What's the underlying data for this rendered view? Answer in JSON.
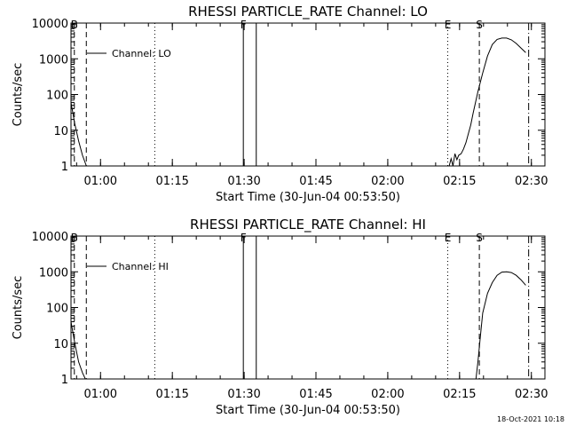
{
  "chart_data": [
    {
      "type": "line",
      "title": "RHESSI PARTICLE_RATE Channel: LO",
      "ylabel": "Counts/sec",
      "xlabel": "Start Time (30-Jun-04 00:53:50)",
      "x_units": "minutes after 00:53:50",
      "xlim": [
        0,
        99
      ],
      "yscale": "log",
      "ylim": [
        1,
        10000
      ],
      "ytick_labels": [
        "1",
        "10",
        "100",
        "1000",
        "10000"
      ],
      "ytick_values": [
        1,
        10,
        100,
        1000,
        10000
      ],
      "xtick_labels": [
        "01:00",
        "01:15",
        "01:30",
        "01:45",
        "02:00",
        "02:15",
        "02:30"
      ],
      "xtick_values": [
        6.17,
        21.17,
        36.17,
        51.17,
        66.17,
        81.17,
        96.17
      ],
      "legend": {
        "label": "Channel: LO",
        "position": "top-left"
      },
      "markers": [
        {
          "label": "B",
          "x": 0.7,
          "style": "dashed"
        },
        {
          "label": "",
          "x": 3.2,
          "style": "dashed"
        },
        {
          "label": "",
          "x": 17.5,
          "style": "dotted"
        },
        {
          "label": "F",
          "x": 36.0,
          "style": "solid"
        },
        {
          "label": "",
          "x": 38.7,
          "style": "solid"
        },
        {
          "label": "E",
          "x": 78.7,
          "style": "dotted"
        },
        {
          "label": "S",
          "x": 85.3,
          "style": "dashed"
        },
        {
          "label": "",
          "x": 95.6,
          "style": "dashdot"
        }
      ],
      "series": [
        {
          "name": "LO",
          "x": [
            0,
            0.8,
            1.6,
            2.4,
            3.2,
            79.0,
            79.4,
            79.8,
            80.2,
            80.6,
            81.0,
            81.5,
            82.0,
            82.5,
            83.0,
            83.5,
            84.0,
            84.5,
            85.0,
            86.0,
            87.0,
            88.0,
            89.0,
            90.0,
            91.0,
            92.0,
            93.0,
            94.0,
            95.0
          ],
          "y": [
            60,
            15,
            5,
            2,
            1,
            1,
            1.6,
            1,
            2.2,
            1.5,
            2.0,
            2.2,
            3.0,
            4.5,
            8,
            14,
            30,
            60,
            120,
            400,
            1200,
            2500,
            3500,
            3800,
            3800,
            3400,
            2700,
            2000,
            1500
          ]
        }
      ]
    },
    {
      "type": "line",
      "title": "RHESSI PARTICLE_RATE Channel: HI",
      "ylabel": "Counts/sec",
      "xlabel": "Start Time (30-Jun-04 00:53:50)",
      "x_units": "minutes after 00:53:50",
      "xlim": [
        0,
        99
      ],
      "yscale": "log",
      "ylim": [
        1,
        10000
      ],
      "ytick_labels": [
        "1",
        "10",
        "100",
        "1000",
        "10000"
      ],
      "ytick_values": [
        1,
        10,
        100,
        1000,
        10000
      ],
      "xtick_labels": [
        "01:00",
        "01:15",
        "01:30",
        "01:45",
        "02:00",
        "02:15",
        "02:30"
      ],
      "xtick_values": [
        6.17,
        21.17,
        36.17,
        51.17,
        66.17,
        81.17,
        96.17
      ],
      "legend": {
        "label": "Channel: HI",
        "position": "top-left"
      },
      "markers": [
        {
          "label": "B",
          "x": 0.7,
          "style": "dashed"
        },
        {
          "label": "",
          "x": 3.2,
          "style": "dashed"
        },
        {
          "label": "",
          "x": 17.5,
          "style": "dotted"
        },
        {
          "label": "F",
          "x": 36.0,
          "style": "solid"
        },
        {
          "label": "",
          "x": 38.7,
          "style": "solid"
        },
        {
          "label": "E",
          "x": 78.7,
          "style": "dotted"
        },
        {
          "label": "S",
          "x": 85.3,
          "style": "dashed"
        },
        {
          "label": "",
          "x": 95.6,
          "style": "dashdot"
        }
      ],
      "series": [
        {
          "name": "HI",
          "x": [
            0,
            0.8,
            1.6,
            2.4,
            3.0,
            84.6,
            85.0,
            85.5,
            86.0,
            87.0,
            88.0,
            89.0,
            90.0,
            91.0,
            92.0,
            93.0,
            94.0,
            95.0
          ],
          "y": [
            40,
            10,
            3,
            1.5,
            1,
            1,
            3,
            15,
            70,
            250,
            500,
            800,
            980,
            1000,
            950,
            800,
            600,
            420
          ]
        }
      ]
    }
  ],
  "footer": {
    "timestamp": "18-Oct-2021 10:18"
  }
}
